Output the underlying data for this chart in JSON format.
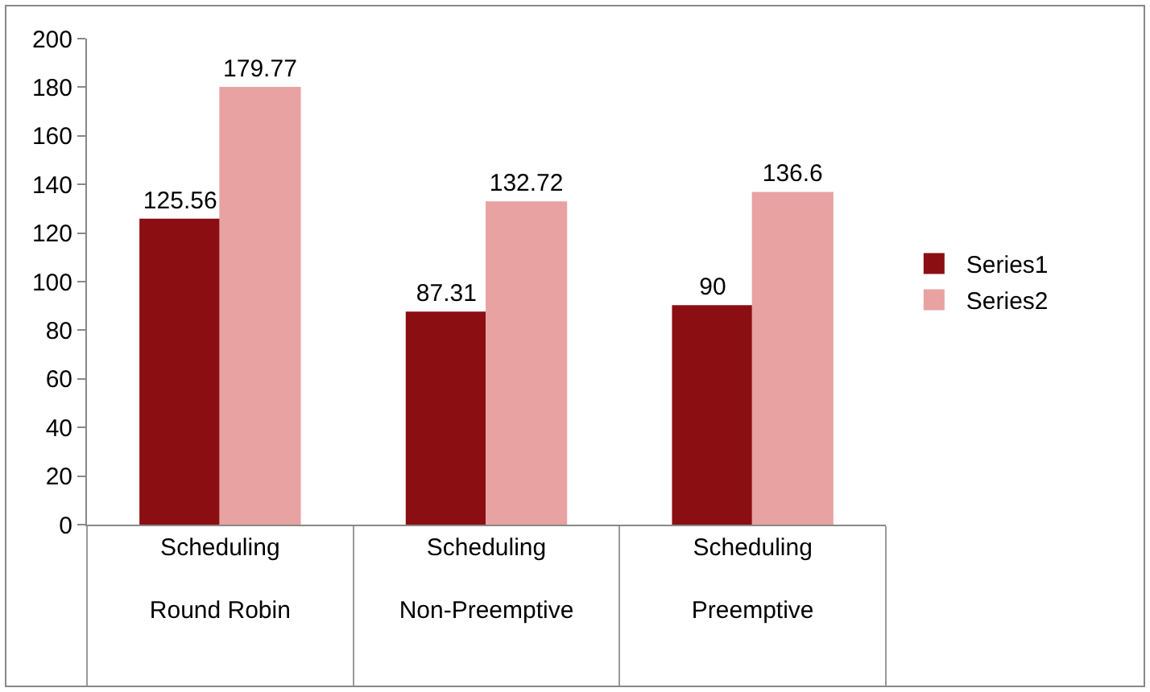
{
  "chart_data": {
    "type": "bar",
    "categories": [
      "Scheduling\nRound Robin",
      "Scheduling\nNon-Preemptive",
      "Scheduling\nPreemptive"
    ],
    "series": [
      {
        "name": "Series1",
        "color": "#8b0f12",
        "values": [
          125.56,
          87.31,
          90
        ]
      },
      {
        "name": "Series2",
        "color": "#e8a2a2",
        "values": [
          179.77,
          132.72,
          136.6
        ]
      }
    ],
    "ylim": [
      0,
      200
    ],
    "yticks": [
      0,
      20,
      40,
      60,
      80,
      100,
      120,
      140,
      160,
      180,
      200
    ],
    "grid": false,
    "legend": "right",
    "data_labels": true
  }
}
